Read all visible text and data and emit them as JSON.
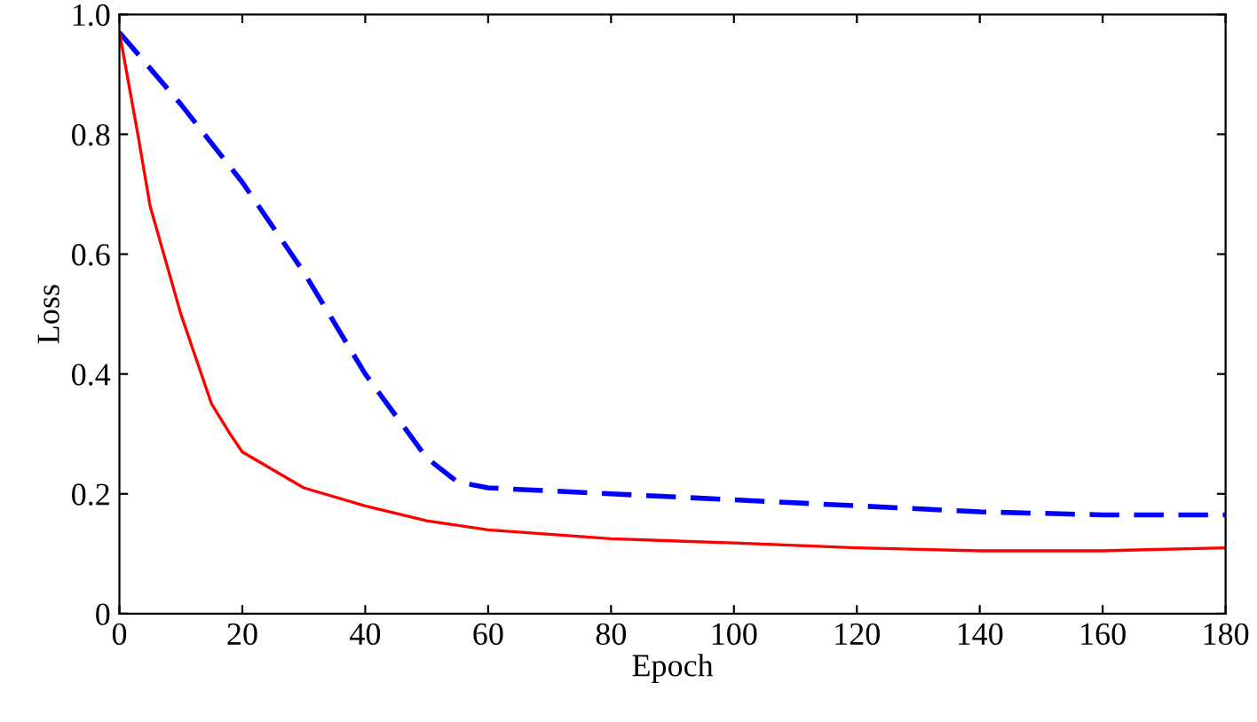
{
  "chart_data": {
    "type": "line",
    "xlabel": "Epoch",
    "ylabel": "Loss",
    "xlim": [
      0,
      180
    ],
    "xticks": [
      0,
      20,
      40,
      60,
      80,
      100,
      120,
      140,
      160,
      180
    ],
    "ylim": [
      0,
      1
    ],
    "yticks": [
      {
        "value": 0,
        "label": "0"
      },
      0.2,
      0.4,
      0.6,
      0.8,
      {
        "value": 1,
        "label": "1.0"
      }
    ],
    "grid": false,
    "series": [
      {
        "color": "#0000ff",
        "line_style": "dashed",
        "x": [
          0,
          10,
          20,
          30,
          40,
          50,
          55,
          60,
          80,
          100,
          120,
          140,
          160,
          180
        ],
        "values": [
          0.97,
          0.85,
          0.72,
          0.57,
          0.4,
          0.26,
          0.22,
          0.21,
          0.2,
          0.19,
          0.18,
          0.17,
          0.165,
          0.165
        ]
      },
      {
        "color": "#ff0000",
        "line_style": "solid",
        "x": [
          0,
          3,
          5,
          10,
          15,
          18,
          20,
          30,
          40,
          50,
          60,
          80,
          100,
          120,
          140,
          160,
          180
        ],
        "values": [
          0.97,
          0.8,
          0.68,
          0.5,
          0.35,
          0.3,
          0.27,
          0.21,
          0.18,
          0.155,
          0.14,
          0.125,
          0.118,
          0.11,
          0.105,
          0.105,
          0.11
        ]
      }
    ]
  }
}
